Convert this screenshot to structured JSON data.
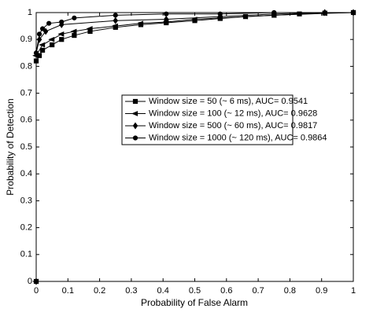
{
  "chart_data": {
    "type": "line",
    "xlabel": "Probability of False Alarm",
    "ylabel": "Probability of Detection",
    "xlim": [
      0,
      1
    ],
    "ylim": [
      0,
      1
    ],
    "xticks": [
      0,
      0.1,
      0.2,
      0.3,
      0.4,
      0.5,
      0.6,
      0.7,
      0.8,
      0.9,
      1
    ],
    "yticks": [
      0,
      0.1,
      0.2,
      0.3,
      0.4,
      0.5,
      0.6,
      0.7,
      0.8,
      0.9,
      1
    ],
    "grid": false,
    "series": [
      {
        "name": "Window size = 50 (~ 6 ms), AUC= 0.9541",
        "color": "#000000",
        "marker": "square",
        "x": [
          0,
          0,
          0.01,
          0.02,
          0.05,
          0.08,
          0.12,
          0.17,
          0.25,
          0.33,
          0.41,
          0.5,
          0.58,
          0.66,
          0.75,
          0.83,
          0.91,
          1
        ],
        "values": [
          0,
          0.82,
          0.84,
          0.86,
          0.88,
          0.9,
          0.915,
          0.93,
          0.945,
          0.955,
          0.962,
          0.97,
          0.978,
          0.985,
          0.99,
          0.995,
          0.998,
          1
        ]
      },
      {
        "name": "Window size = 100 (~ 12 ms), AUC= 0.9628",
        "color": "#000000",
        "marker": "triangle",
        "x": [
          0,
          0,
          0.02,
          0.05,
          0.08,
          0.12,
          0.17,
          0.25,
          0.33,
          0.41,
          0.5,
          0.58,
          0.66,
          0.75,
          0.91,
          1
        ],
        "values": [
          0,
          0.84,
          0.88,
          0.9,
          0.92,
          0.93,
          0.94,
          0.95,
          0.96,
          0.965,
          0.975,
          0.98,
          0.985,
          0.99,
          0.997,
          1
        ]
      },
      {
        "name": "Window size = 500 (~ 60 ms), AUC= 0.9817",
        "color": "#000000",
        "marker": "diamond",
        "x": [
          0,
          0,
          0.01,
          0.03,
          0.08,
          0.25,
          0.41,
          0.58,
          0.75,
          0.91,
          1
        ],
        "values": [
          0,
          0.85,
          0.9,
          0.93,
          0.955,
          0.97,
          0.975,
          0.985,
          0.995,
          1,
          1
        ]
      },
      {
        "name": "Window size = 1000 (~ 120 ms), AUC= 0.9864",
        "color": "#000000",
        "marker": "circle",
        "x": [
          0,
          0,
          0.01,
          0.02,
          0.04,
          0.08,
          0.12,
          0.25,
          0.41,
          0.58,
          0.75,
          1
        ],
        "values": [
          0,
          0.85,
          0.92,
          0.94,
          0.96,
          0.965,
          0.98,
          0.99,
          0.995,
          0.995,
          1,
          1
        ]
      }
    ]
  }
}
